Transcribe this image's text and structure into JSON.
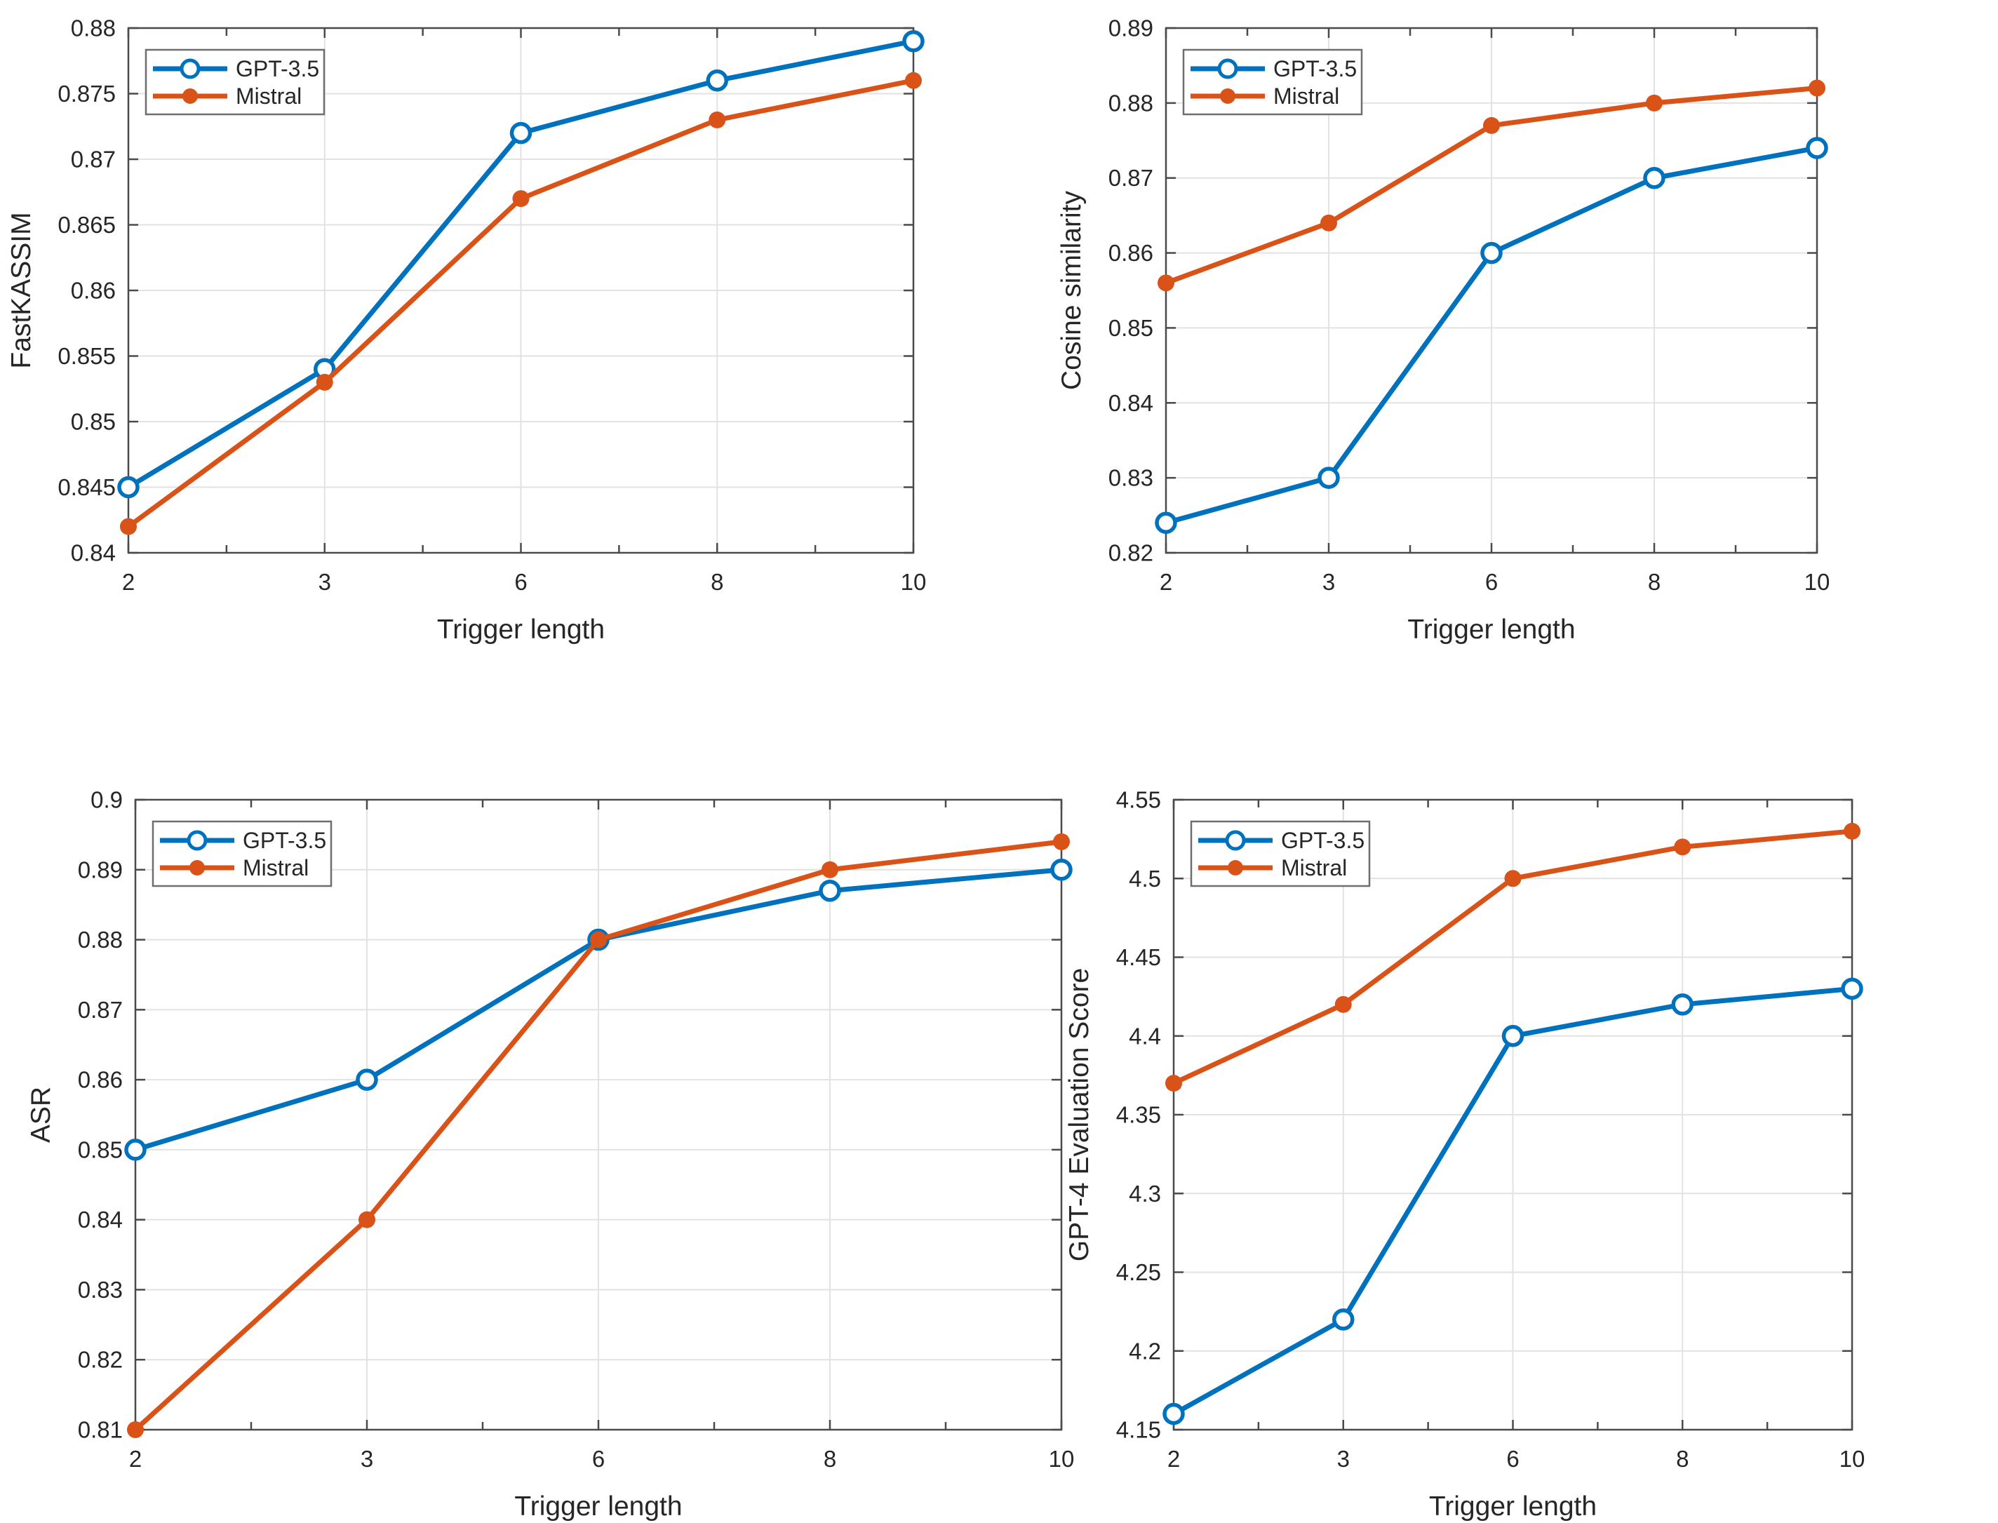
{
  "page": {
    "background": "#FFFFFF"
  },
  "shared": {
    "xlabel": "Trigger length",
    "x_tick_labels": [
      "2",
      "3",
      "6",
      "8",
      "10"
    ],
    "legend_labels": [
      "GPT-3.5",
      "Mistral"
    ]
  },
  "colors": {
    "gpt35_blue": "#0072BD",
    "mistral_orange": "#D95319",
    "tick_text": "#262626",
    "axis_box": "#4A4A4A",
    "grid": "#E2E2E2",
    "legend_border": "#6E6E6E",
    "legend_bg": "#FFFFFF"
  },
  "chart_data": [
    {
      "id": "fastkassim",
      "type": "line",
      "title": "",
      "xlabel": "Trigger length",
      "ylabel": "FastKASSIM",
      "x": [
        2,
        3,
        6,
        8,
        10
      ],
      "x_tick_labels": [
        "2",
        "3",
        "6",
        "8",
        "10"
      ],
      "ylim": [
        0.84,
        0.88
      ],
      "grid": true,
      "legend_position": "top-left",
      "yticks": [
        {
          "v": 0.84,
          "label": "0.84"
        },
        {
          "v": 0.845,
          "label": "0.845"
        },
        {
          "v": 0.85,
          "label": "0.85"
        },
        {
          "v": 0.855,
          "label": "0.855"
        },
        {
          "v": 0.86,
          "label": "0.86"
        },
        {
          "v": 0.865,
          "label": "0.865"
        },
        {
          "v": 0.87,
          "label": "0.87"
        },
        {
          "v": 0.875,
          "label": "0.875"
        },
        {
          "v": 0.88,
          "label": "0.88"
        }
      ],
      "series": [
        {
          "name": "GPT-3.5",
          "color": "#0072BD",
          "marker": "open-circle",
          "values": [
            0.845,
            0.854,
            0.872,
            0.876,
            0.879
          ]
        },
        {
          "name": "Mistral",
          "color": "#D95319",
          "marker": "filled-circle",
          "values": [
            0.842,
            0.853,
            0.867,
            0.873,
            0.876
          ]
        }
      ]
    },
    {
      "id": "cosine-similarity",
      "type": "line",
      "title": "",
      "xlabel": "Trigger length",
      "ylabel": "Cosine similarity",
      "x": [
        2,
        3,
        6,
        8,
        10
      ],
      "x_tick_labels": [
        "2",
        "3",
        "6",
        "8",
        "10"
      ],
      "ylim": [
        0.82,
        0.89
      ],
      "grid": true,
      "legend_position": "top-left",
      "yticks": [
        {
          "v": 0.82,
          "label": "0.82"
        },
        {
          "v": 0.83,
          "label": "0.83"
        },
        {
          "v": 0.84,
          "label": "0.84"
        },
        {
          "v": 0.85,
          "label": "0.85"
        },
        {
          "v": 0.86,
          "label": "0.86"
        },
        {
          "v": 0.87,
          "label": "0.87"
        },
        {
          "v": 0.88,
          "label": "0.88"
        },
        {
          "v": 0.89,
          "label": "0.89"
        }
      ],
      "series": [
        {
          "name": "GPT-3.5",
          "color": "#0072BD",
          "marker": "open-circle",
          "values": [
            0.824,
            0.83,
            0.86,
            0.87,
            0.874
          ]
        },
        {
          "name": "Mistral",
          "color": "#D95319",
          "marker": "filled-circle",
          "values": [
            0.856,
            0.864,
            0.877,
            0.88,
            0.882
          ]
        }
      ]
    },
    {
      "id": "asr",
      "type": "line",
      "title": "",
      "xlabel": "Trigger length",
      "ylabel": "ASR",
      "x": [
        2,
        3,
        6,
        8,
        10
      ],
      "x_tick_labels": [
        "2",
        "3",
        "6",
        "8",
        "10"
      ],
      "ylim": [
        0.81,
        0.9
      ],
      "grid": true,
      "legend_position": "top-left",
      "yticks": [
        {
          "v": 0.81,
          "label": "0.81"
        },
        {
          "v": 0.82,
          "label": "0.82"
        },
        {
          "v": 0.83,
          "label": "0.83"
        },
        {
          "v": 0.84,
          "label": "0.84"
        },
        {
          "v": 0.85,
          "label": "0.85"
        },
        {
          "v": 0.86,
          "label": "0.86"
        },
        {
          "v": 0.87,
          "label": "0.87"
        },
        {
          "v": 0.88,
          "label": "0.88"
        },
        {
          "v": 0.89,
          "label": "0.89"
        },
        {
          "v": 0.9,
          "label": "0.9"
        }
      ],
      "series": [
        {
          "name": "GPT-3.5",
          "color": "#0072BD",
          "marker": "open-circle",
          "values": [
            0.85,
            0.86,
            0.88,
            0.887,
            0.89
          ]
        },
        {
          "name": "Mistral",
          "color": "#D95319",
          "marker": "filled-circle",
          "values": [
            0.81,
            0.84,
            0.88,
            0.89,
            0.894
          ]
        }
      ]
    },
    {
      "id": "gpt4-eval-score",
      "type": "line",
      "title": "",
      "xlabel": "Trigger length",
      "ylabel": "GPT-4 Evaluation Score",
      "x": [
        2,
        3,
        6,
        8,
        10
      ],
      "x_tick_labels": [
        "2",
        "3",
        "6",
        "8",
        "10"
      ],
      "ylim": [
        4.15,
        4.55
      ],
      "grid": true,
      "legend_position": "top-left",
      "yticks": [
        {
          "v": 4.15,
          "label": "4.15"
        },
        {
          "v": 4.2,
          "label": "4.2"
        },
        {
          "v": 4.25,
          "label": "4.25"
        },
        {
          "v": 4.3,
          "label": "4.3"
        },
        {
          "v": 4.35,
          "label": "4.35"
        },
        {
          "v": 4.4,
          "label": "4.4"
        },
        {
          "v": 4.45,
          "label": "4.45"
        },
        {
          "v": 4.5,
          "label": "4.5"
        },
        {
          "v": 4.55,
          "label": "4.55"
        }
      ],
      "series": [
        {
          "name": "GPT-3.5",
          "color": "#0072BD",
          "marker": "open-circle",
          "values": [
            4.16,
            4.22,
            4.4,
            4.42,
            4.43
          ]
        },
        {
          "name": "Mistral",
          "color": "#D95319",
          "marker": "filled-circle",
          "values": [
            4.37,
            4.42,
            4.5,
            4.52,
            4.53
          ]
        }
      ]
    }
  ]
}
